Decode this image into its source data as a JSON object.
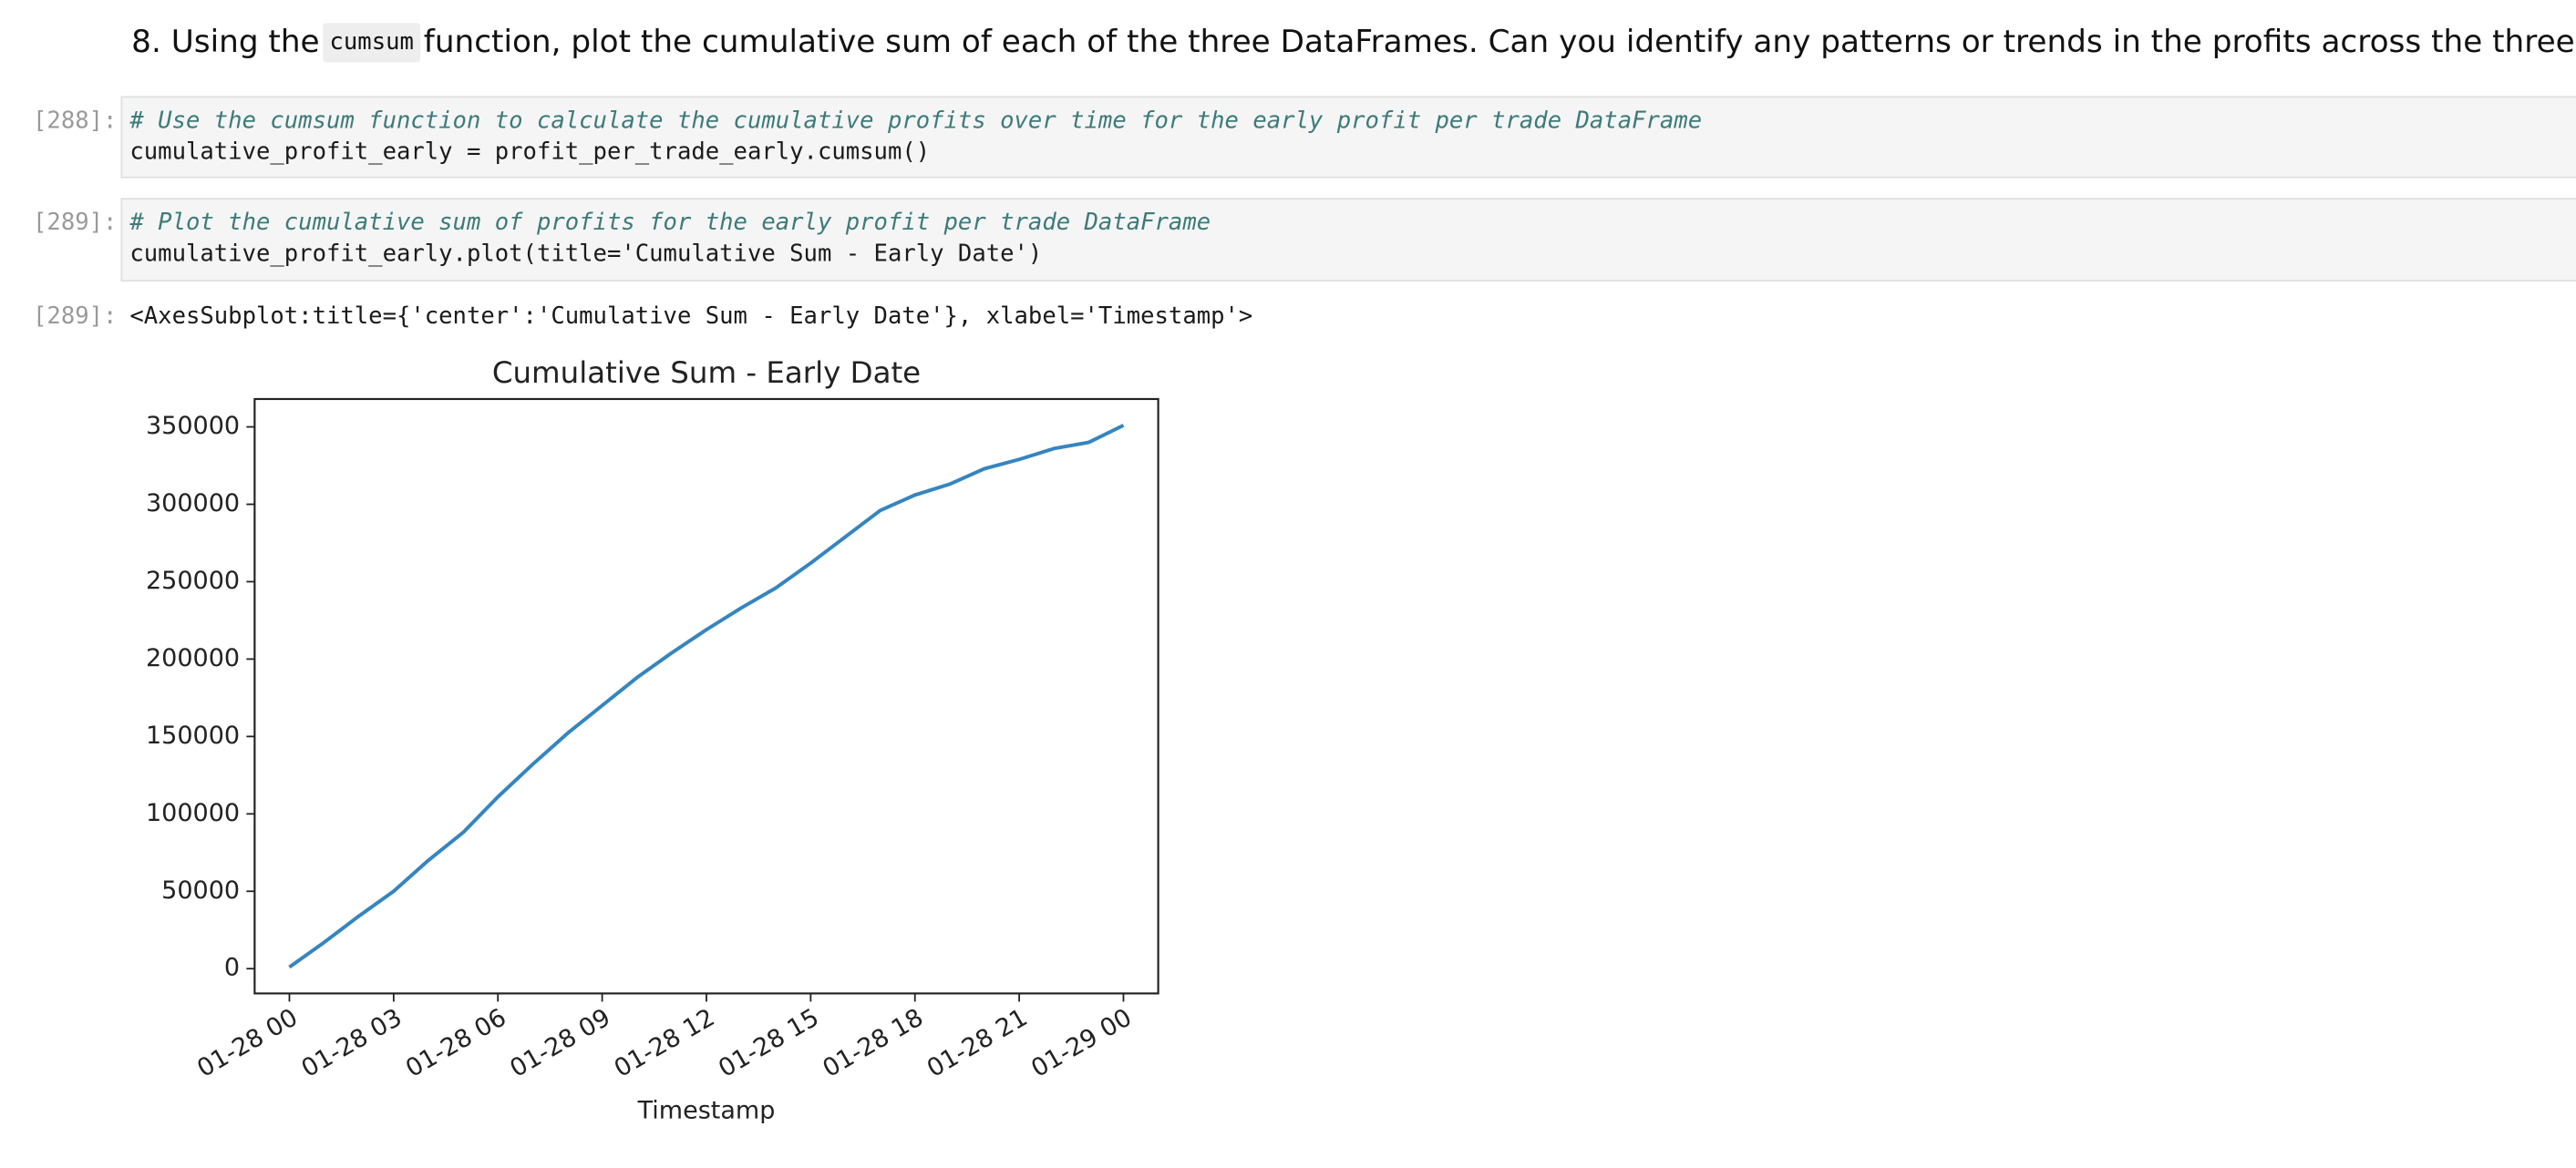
{
  "heading": {
    "parts": [
      "8. Using the ",
      "cumsum",
      " function, plot the cumulative sum of each of the three DataFrames. Can you identify any patterns or trends in the profits across the three time periods?"
    ]
  },
  "cells": [
    {
      "prompt": "[288]:",
      "comment": "# Use the cumsum function to calculate the cumulative profits over time for the early profit per trade DataFrame",
      "code": "cumulative_profit_early = profit_per_trade_early.cumsum()"
    },
    {
      "prompt": "[289]:",
      "comment": "# Plot the cumulative sum of profits for the early profit per trade DataFrame",
      "code": "cumulative_profit_early.plot(title='Cumulative Sum - Early Date')"
    }
  ],
  "output": {
    "prompt": "[289]:",
    "text": "<AxesSubplot:title={'center':'Cumulative Sum - Early Date'}, xlabel='Timestamp'>"
  },
  "chart_data": {
    "type": "line",
    "title": "Cumulative Sum - Early Date",
    "x_label": "Timestamp",
    "x": [
      "01-28 00",
      "01-28 01",
      "01-28 02",
      "01-28 03",
      "01-28 04",
      "01-28 05",
      "01-28 06",
      "01-28 07",
      "01-28 08",
      "01-28 09",
      "01-28 10",
      "01-28 11",
      "01-28 12",
      "01-28 13",
      "01-28 14",
      "01-28 15",
      "01-28 16",
      "01-28 17",
      "01-28 18",
      "01-28 19",
      "01-28 20",
      "01-28 21",
      "01-28 22",
      "01-28 23",
      "01-29 00"
    ],
    "series": [
      {
        "color": "#3585c0",
        "values": [
          1000,
          17000,
          34000,
          50000,
          70000,
          88000,
          111000,
          132000,
          152000,
          170000,
          188000,
          204000,
          219000,
          233000,
          246000,
          262000,
          279000,
          296000,
          306000,
          313000,
          323000,
          329000,
          336000,
          340000,
          351000
        ]
      }
    ],
    "xlim": [
      "01-27 23",
      "01-29 01"
    ],
    "xticks": [
      "01-28 00",
      "01-28 03",
      "01-28 06",
      "01-28 09",
      "01-28 12",
      "01-28 15",
      "01-28 18",
      "01-28 21",
      "01-29 00"
    ],
    "ylim": [
      -16000,
      368000
    ],
    "yticks": [
      0,
      50000,
      100000,
      150000,
      200000,
      250000,
      300000,
      350000
    ]
  }
}
